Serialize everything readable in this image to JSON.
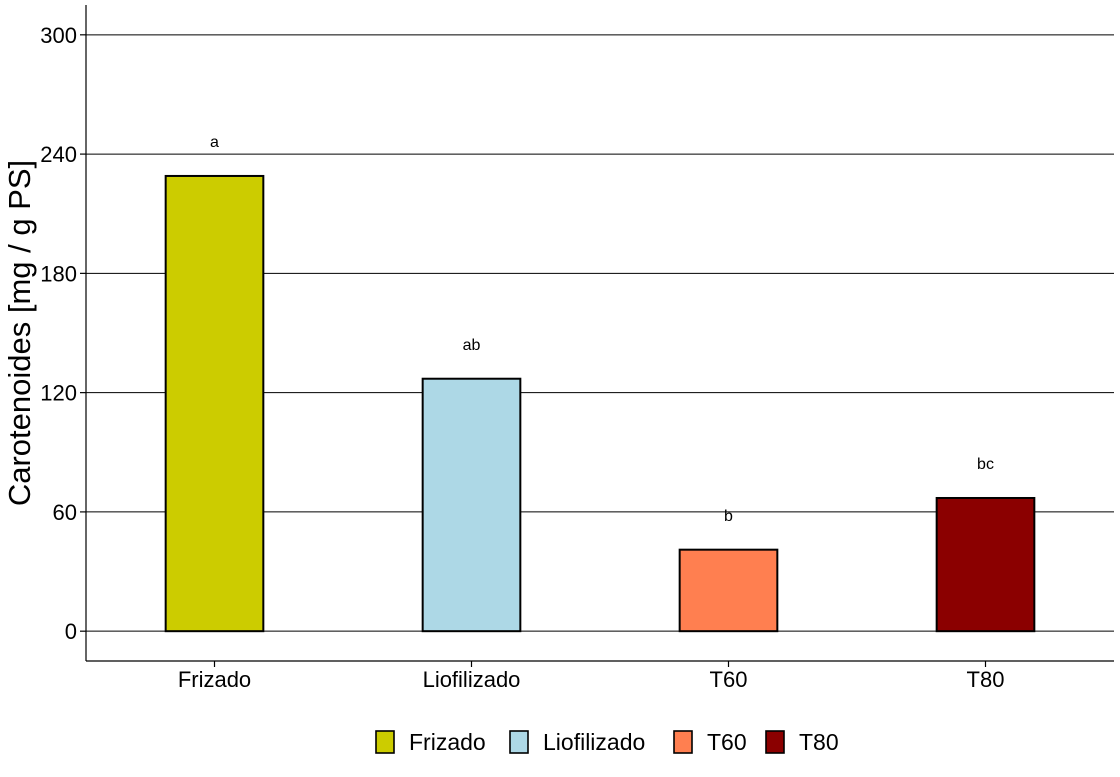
{
  "chart_data": {
    "type": "bar",
    "title": "",
    "xlabel": "",
    "ylabel": "Carotenoides [mg / g PS]",
    "categories": [
      "Frizado",
      "Liofilizado",
      "T60",
      "T80"
    ],
    "values": [
      229,
      127,
      41,
      67
    ],
    "annotations": [
      "a",
      "ab",
      "b",
      "bc"
    ],
    "annotation_values": [
      246,
      144,
      58,
      84
    ],
    "colors": [
      "#CCCC00",
      "#ADD8E6",
      "#FF7F50",
      "#8B0000"
    ],
    "ylim": [
      -15,
      315
    ],
    "yticks": [
      0,
      60,
      120,
      180,
      240,
      300
    ],
    "ytick_labels": [
      "0",
      "60",
      "120",
      "180",
      "240",
      "300"
    ],
    "grid": "horizontal major lines",
    "legend": {
      "position": "bottom",
      "entries": [
        "Frizado",
        "Liofilizado",
        "T60",
        "T80"
      ]
    }
  }
}
